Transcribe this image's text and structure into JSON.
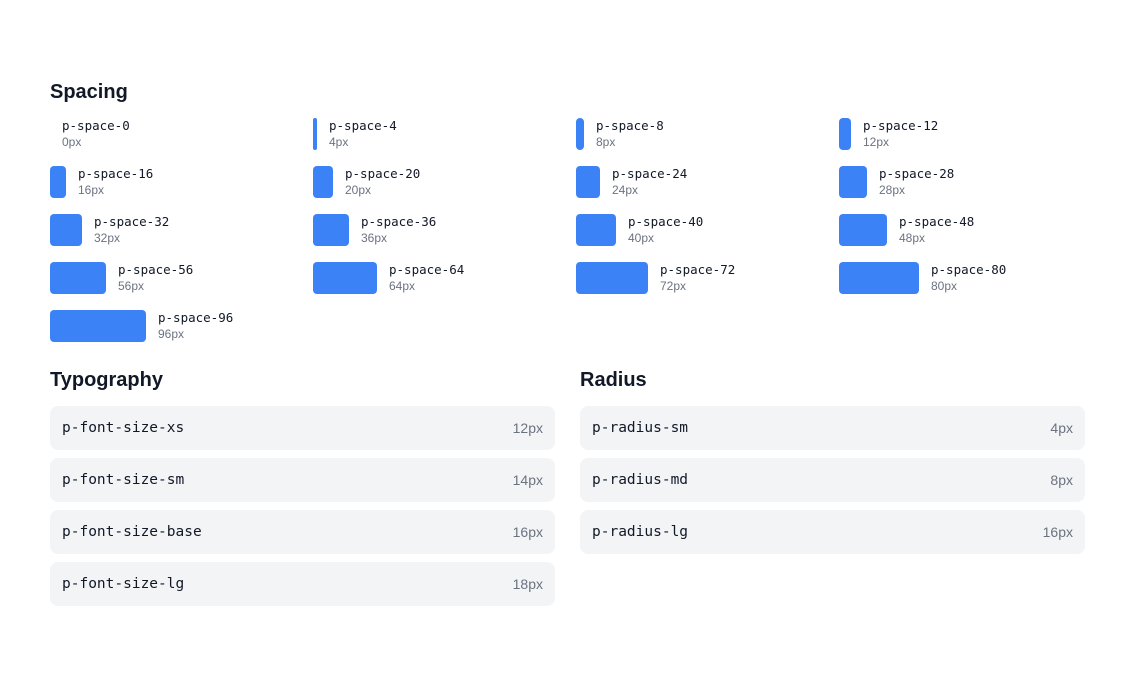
{
  "spacing": {
    "title": "Spacing",
    "items": [
      {
        "name": "p-space-0",
        "value": "0px"
      },
      {
        "name": "p-space-4",
        "value": "4px"
      },
      {
        "name": "p-space-8",
        "value": "8px"
      },
      {
        "name": "p-space-12",
        "value": "12px"
      },
      {
        "name": "p-space-16",
        "value": "16px"
      },
      {
        "name": "p-space-20",
        "value": "20px"
      },
      {
        "name": "p-space-24",
        "value": "24px"
      },
      {
        "name": "p-space-28",
        "value": "28px"
      },
      {
        "name": "p-space-32",
        "value": "32px"
      },
      {
        "name": "p-space-36",
        "value": "36px"
      },
      {
        "name": "p-space-40",
        "value": "40px"
      },
      {
        "name": "p-space-48",
        "value": "48px"
      },
      {
        "name": "p-space-56",
        "value": "56px"
      },
      {
        "name": "p-space-64",
        "value": "64px"
      },
      {
        "name": "p-space-72",
        "value": "72px"
      },
      {
        "name": "p-space-80",
        "value": "80px"
      },
      {
        "name": "p-space-96",
        "value": "96px"
      }
    ]
  },
  "typography": {
    "title": "Typography",
    "items": [
      {
        "name": "p-font-size-xs",
        "value": "12px"
      },
      {
        "name": "p-font-size-sm",
        "value": "14px"
      },
      {
        "name": "p-font-size-base",
        "value": "16px"
      },
      {
        "name": "p-font-size-lg",
        "value": "18px"
      }
    ]
  },
  "radius": {
    "title": "Radius",
    "items": [
      {
        "name": "p-radius-sm",
        "value": "4px"
      },
      {
        "name": "p-radius-md",
        "value": "8px"
      },
      {
        "name": "p-radius-lg",
        "value": "16px"
      }
    ]
  }
}
